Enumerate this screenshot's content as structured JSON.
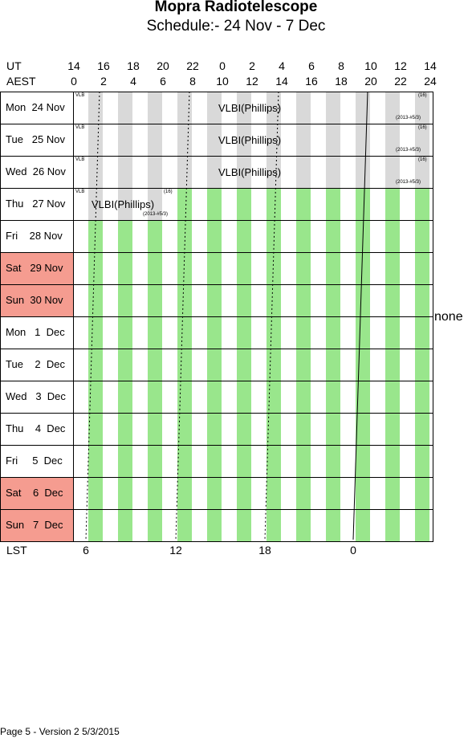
{
  "title": "Mopra Radiotelescope",
  "subtitle": "Schedule:- 24 Nov - 7  Dec",
  "ut_label": "UT",
  "aest_label": "AEST",
  "ut_ticks": [
    "14",
    "16",
    "18",
    "20",
    "22",
    "0",
    "2",
    "4",
    "6",
    "8",
    "10",
    "12",
    "14"
  ],
  "aest_ticks": [
    "0",
    "2",
    "4",
    "6",
    "8",
    "10",
    "12",
    "14",
    "16",
    "18",
    "20",
    "22",
    "24"
  ],
  "days": [
    {
      "label": "Mon  24 Nov",
      "weekend": false,
      "shading": "gray"
    },
    {
      "label": "Tue   25 Nov",
      "weekend": false,
      "shading": "gray"
    },
    {
      "label": "Wed  26 Nov",
      "weekend": false,
      "shading": "gray"
    },
    {
      "label": "Thu   27 Nov",
      "weekend": false,
      "shading": "mixed"
    },
    {
      "label": "Fri    28 Nov",
      "weekend": false,
      "shading": "green"
    },
    {
      "label": "Sat   29 Nov",
      "weekend": true,
      "shading": "green"
    },
    {
      "label": "Sun  30 Nov",
      "weekend": true,
      "shading": "green"
    },
    {
      "label": "Mon   1  Dec",
      "weekend": false,
      "shading": "green"
    },
    {
      "label": "Tue    2  Dec",
      "weekend": false,
      "shading": "green"
    },
    {
      "label": "Wed   3  Dec",
      "weekend": false,
      "shading": "green"
    },
    {
      "label": "Thu    4  Dec",
      "weekend": false,
      "shading": "green"
    },
    {
      "label": "Fri     5  Dec",
      "weekend": false,
      "shading": "green"
    },
    {
      "label": "Sat    6  Dec",
      "weekend": true,
      "shading": "green"
    },
    {
      "label": "Sun   7  Dec",
      "weekend": true,
      "shading": "green"
    }
  ],
  "events": [
    {
      "day": 0,
      "name": "VLBI(Phillips)",
      "tag": "VLB",
      "code": "(16)",
      "note": "(2013-#5/3)"
    },
    {
      "day": 1,
      "name": "VLBI(Phillips)",
      "tag": "VLB",
      "code": "(16)",
      "note": "(2013-#5/3)"
    },
    {
      "day": 2,
      "name": "VLBI(Phillips)",
      "tag": "VLB",
      "code": "(16)",
      "note": "(2013-#5/3)"
    },
    {
      "day": 3,
      "name": "VLBI(Phillips)",
      "tag": "VLB",
      "code": "(16)",
      "note": "(2013-#5/3)"
    }
  ],
  "none_label": "none",
  "lst_label": "LST",
  "lst_ticks": [
    "6",
    "12",
    "18",
    "0"
  ],
  "footer": "Page 5 - Version 2  5/3/2015",
  "colors": {
    "weekend": "#f59c90",
    "green_stripe": "#99e68c",
    "gray_stripe": "#d9d9d9"
  }
}
